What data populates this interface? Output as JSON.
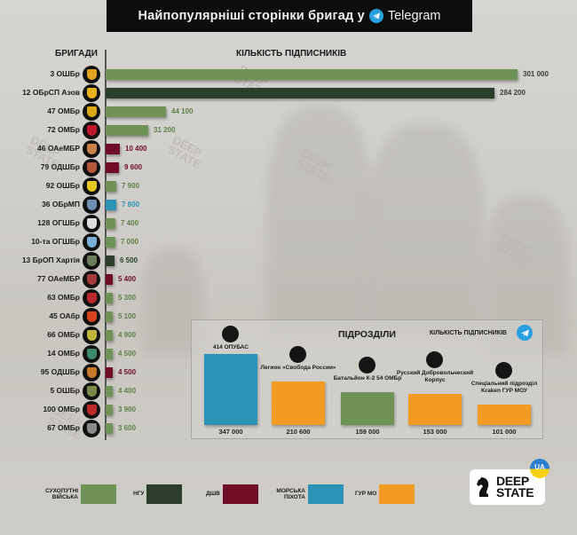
{
  "title": {
    "text": "Найпопулярніші сторінки бригад у",
    "platform": "Telegram",
    "icon": "telegram-icon"
  },
  "headers": {
    "brigades": "БРИГАДИ",
    "subscribers": "КІЛЬКІСТЬ ПІДПИСНИКІВ"
  },
  "colors": {
    "ground_forces": "#6f9257",
    "ngu": "#2b3e2b",
    "air_assault": "#6e0d25",
    "marines": "#2c93b7",
    "gur": "#f39a22"
  },
  "brigades": [
    {
      "name": "3 ОШБр",
      "value": 301000,
      "label": "301 000",
      "branch": "ground_forces"
    },
    {
      "name": "12 ОБрСП Азов",
      "value": 284200,
      "label": "284 200",
      "branch": "ngu"
    },
    {
      "name": "47 ОМБр",
      "value": 44100,
      "label": "44 100",
      "branch": "ground_forces"
    },
    {
      "name": "72 ОМБр",
      "value": 31200,
      "label": "31 200",
      "branch": "ground_forces"
    },
    {
      "name": "46 ОАеМБР",
      "value": 10400,
      "label": "10 400",
      "branch": "air_assault"
    },
    {
      "name": "79 ОДШБр",
      "value": 9600,
      "label": "9 600",
      "branch": "air_assault"
    },
    {
      "name": "92 ОШБр",
      "value": 7900,
      "label": "7 900",
      "branch": "ground_forces"
    },
    {
      "name": "36 ОБрМП",
      "value": 7800,
      "label": "7 800",
      "branch": "marines"
    },
    {
      "name": "128 ОГШБр",
      "value": 7400,
      "label": "7 400",
      "branch": "ground_forces"
    },
    {
      "name": "10-та ОГШБр",
      "value": 7000,
      "label": "7 000",
      "branch": "ground_forces"
    },
    {
      "name": "13 БрОП Хартія",
      "value": 6500,
      "label": "6 500",
      "branch": "ngu"
    },
    {
      "name": "77 ОАеМБР",
      "value": 5400,
      "label": "5 400",
      "branch": "air_assault"
    },
    {
      "name": "63 ОМБр",
      "value": 5300,
      "label": "5 300",
      "branch": "ground_forces"
    },
    {
      "name": "45 ОАбр",
      "value": 5100,
      "label": "5 100",
      "branch": "ground_forces"
    },
    {
      "name": "66 ОМБр",
      "value": 4900,
      "label": "4 900",
      "branch": "ground_forces"
    },
    {
      "name": "14 ОМБр",
      "value": 4500,
      "label": "4 500",
      "branch": "ground_forces"
    },
    {
      "name": "95 ОДШБр",
      "value": 4500,
      "label": "4 500",
      "branch": "air_assault"
    },
    {
      "name": "5 ОШБр",
      "value": 4400,
      "label": "4 400",
      "branch": "ground_forces"
    },
    {
      "name": "100 ОМБр",
      "value": 3900,
      "label": "3 900",
      "branch": "ground_forces"
    },
    {
      "name": "67 ОМБр",
      "value": 3600,
      "label": "3 600",
      "branch": "ground_forces"
    }
  ],
  "subunits_panel": {
    "title": "ПІДРОЗДІЛИ",
    "subscribers_label": "КІЛЬКІСТЬ ПІДПИСНИКІВ",
    "items": [
      {
        "name": "414 ОПУБАС",
        "value": 347000,
        "label": "347 000",
        "branch": "marines"
      },
      {
        "name": "Легион «Свобода России»",
        "value": 210600,
        "label": "210 600",
        "branch": "gur"
      },
      {
        "name": "Батальйон К-2 54 ОМБр",
        "value": 159000,
        "label": "159 000",
        "branch": "ground_forces"
      },
      {
        "name": "Русский Добровольческий Корпус",
        "value": 153000,
        "label": "153 000",
        "branch": "gur"
      },
      {
        "name": "Спеціальний підрозділ Kraken ГУР МОУ",
        "value": 101000,
        "label": "101 000",
        "branch": "gur"
      }
    ]
  },
  "legend": [
    {
      "label": "СУХОПУТНІ ВІЙСЬКА",
      "branch": "ground_forces"
    },
    {
      "label": "НГУ",
      "branch": "ngu"
    },
    {
      "label": "ДШВ",
      "branch": "air_assault"
    },
    {
      "label": "МОРСЬКА ПІХОТА",
      "branch": "marines"
    },
    {
      "label": "ГУР МО",
      "branch": "gur"
    }
  ],
  "logo": {
    "line1": "DEEP",
    "line2": "STATE",
    "badge": "UA"
  },
  "watermark": {
    "line1": "DEEP",
    "line2": "STATE"
  },
  "chart_data": [
    {
      "type": "bar",
      "orientation": "horizontal",
      "title": "Найпопулярніші сторінки бригад у Telegram",
      "xlabel": "КІЛЬКІСТЬ ПІДПИСНИКІВ",
      "ylabel": "БРИГАДИ",
      "categories": [
        "3 ОШБр",
        "12 ОБрСП Азов",
        "47 ОМБр",
        "72 ОМБр",
        "46 ОАеМБР",
        "79 ОДШБр",
        "92 ОШБр",
        "36 ОБрМП",
        "128 ОГШБр",
        "10-та ОГШБр",
        "13 БрОП Хартія",
        "77 ОАеМБР",
        "63 ОМБр",
        "45 ОАбр",
        "66 ОМБр",
        "14 ОМБр",
        "95 ОДШБр",
        "5 ОШБр",
        "100 ОМБр",
        "67 ОМБр"
      ],
      "values": [
        301000,
        284200,
        44100,
        31200,
        10400,
        9600,
        7900,
        7800,
        7400,
        7000,
        6500,
        5400,
        5300,
        5100,
        4900,
        4500,
        4500,
        4400,
        3900,
        3600
      ],
      "color_groups": [
        "СУХОПУТНІ ВІЙСЬКА",
        "НГУ",
        "СУХОПУТНІ ВІЙСЬКА",
        "СУХОПУТНІ ВІЙСЬКА",
        "ДШВ",
        "ДШВ",
        "СУХОПУТНІ ВІЙСЬКА",
        "МОРСЬКА ПІХОТА",
        "СУХОПУТНІ ВІЙСЬКА",
        "СУХОПУТНІ ВІЙСЬКА",
        "НГУ",
        "ДШВ",
        "СУХОПУТНІ ВІЙСЬКА",
        "СУХОПУТНІ ВІЙСЬКА",
        "СУХОПУТНІ ВІЙСЬКА",
        "СУХОПУТНІ ВІЙСЬКА",
        "ДШВ",
        "СУХОПУТНІ ВІЙСЬКА",
        "СУХОПУТНІ ВІЙСЬКА",
        "СУХОПУТНІ ВІЙСЬКА"
      ],
      "legend": [
        "СУХОПУТНІ ВІЙСЬКА",
        "НГУ",
        "ДШВ",
        "МОРСЬКА ПІХОТА",
        "ГУР МО"
      ],
      "legend_position": "bottom",
      "grid": false
    },
    {
      "type": "bar",
      "orientation": "vertical",
      "title": "ПІДРОЗДІЛИ",
      "ylabel": "КІЛЬКІСТЬ ПІДПИСНИКІВ",
      "categories": [
        "414 ОПУБАС",
        "Легион «Свобода России»",
        "Батальйон К-2 54 ОМБр",
        "Русский Добровольческий Корпус",
        "Спеціальний підрозділ Kraken ГУР МОУ"
      ],
      "values": [
        347000,
        210600,
        159000,
        153000,
        101000
      ],
      "color_groups": [
        "МОРСЬКА ПІХОТА",
        "ГУР МО",
        "СУХОПУТНІ ВІЙСЬКА",
        "ГУР МО",
        "ГУР МО"
      ],
      "grid": false
    }
  ]
}
